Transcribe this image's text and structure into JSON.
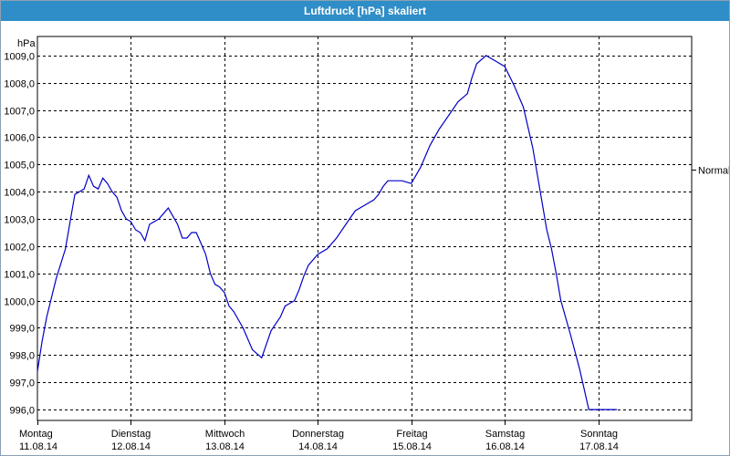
{
  "window": {
    "title": "Luftdruck [hPa] skaliert"
  },
  "chart_data": {
    "type": "line",
    "title": "Luftdruck [hPa] skaliert",
    "ylabel": "hPa",
    "ylim": [
      995.6,
      1009.7
    ],
    "grid": true,
    "y_ticks": [
      "996,0",
      "997,0",
      "998,0",
      "999,0",
      "1000,0",
      "1001,0",
      "1002,0",
      "1003,0",
      "1004,0",
      "1005,0",
      "1006,0",
      "1007,0",
      "1008,0",
      "1009,0"
    ],
    "y_tick_values": [
      996,
      997,
      998,
      999,
      1000,
      1001,
      1002,
      1003,
      1004,
      1005,
      1006,
      1007,
      1008,
      1009
    ],
    "x_ticks": [
      {
        "day": "Montag",
        "date": "11.08.14"
      },
      {
        "day": "Dienstag",
        "date": "12.08.14"
      },
      {
        "day": "Mittwoch",
        "date": "13.08.14"
      },
      {
        "day": "Donnerstag",
        "date": "14.08.14"
      },
      {
        "day": "Freitag",
        "date": "15.08.14"
      },
      {
        "day": "Samstag",
        "date": "16.08.14"
      },
      {
        "day": "Sonntag",
        "date": "17.08.14"
      }
    ],
    "reference_line": {
      "label": "Normal",
      "value": 1004.8
    },
    "series": [
      {
        "color": "#0000c8",
        "x_days": [
          0,
          0.05,
          0.1,
          0.2,
          0.3,
          0.4,
          0.5,
          0.55,
          0.6,
          0.65,
          0.7,
          0.75,
          0.8,
          0.85,
          0.9,
          0.95,
          1.0,
          1.05,
          1.1,
          1.15,
          1.2,
          1.3,
          1.4,
          1.5,
          1.55,
          1.6,
          1.65,
          1.7,
          1.75,
          1.8,
          1.85,
          1.9,
          1.95,
          2.0,
          2.05,
          2.1,
          2.2,
          2.3,
          2.4,
          2.5,
          2.6,
          2.65,
          2.7,
          2.75,
          2.8,
          2.85,
          2.9,
          3.0,
          3.1,
          3.2,
          3.3,
          3.4,
          3.5,
          3.6,
          3.65,
          3.7,
          3.75,
          3.8,
          3.9,
          4.0,
          4.1,
          4.2,
          4.3,
          4.4,
          4.5,
          4.6,
          4.65,
          4.7,
          4.8,
          4.9,
          5.0,
          5.1,
          5.2,
          5.3,
          5.35,
          5.4,
          5.45,
          5.5,
          5.55,
          5.6,
          5.7,
          5.8,
          5.9,
          6.0,
          6.1,
          6.2,
          6.3,
          6.4,
          6.5,
          6.6,
          6.7,
          6.8,
          6.9
        ],
        "y": [
          997.4,
          998.5,
          999.4,
          1000.8,
          1001.9,
          1003.9,
          1004.1,
          1004.6,
          1004.2,
          1004.1,
          1004.5,
          1004.3,
          1004.0,
          1003.8,
          1003.3,
          1003.0,
          1002.9,
          1002.6,
          1002.5,
          1002.2,
          1002.8,
          1003.0,
          1003.4,
          1002.8,
          1002.3,
          1002.3,
          1002.5,
          1002.5,
          1002.1,
          1001.7,
          1001.0,
          1000.6,
          1000.5,
          1000.3,
          999.8,
          999.6,
          999.0,
          998.2,
          997.9,
          998.9,
          999.4,
          999.8,
          999.9,
          1000.0,
          1000.4,
          1000.9,
          1001.3,
          1001.7,
          1001.9,
          1002.3,
          1002.8,
          1003.3,
          1003.5,
          1003.7,
          1003.9,
          1004.2,
          1004.4,
          1004.4,
          1004.4,
          1004.3,
          1004.9,
          1005.7,
          1006.3,
          1006.8,
          1007.3,
          1007.6,
          1008.2,
          1008.7,
          1009.0,
          1008.8,
          1008.6,
          1007.9,
          1007.1,
          1005.6,
          1004.6,
          1003.6,
          1002.6,
          1001.9,
          1001.0,
          1000.0,
          998.8,
          997.5,
          996.0,
          996.0,
          996.0,
          996.0,
          996.0,
          996.0,
          996.0,
          996.0,
          996.0,
          996.0,
          996.0
        ]
      }
    ]
  }
}
